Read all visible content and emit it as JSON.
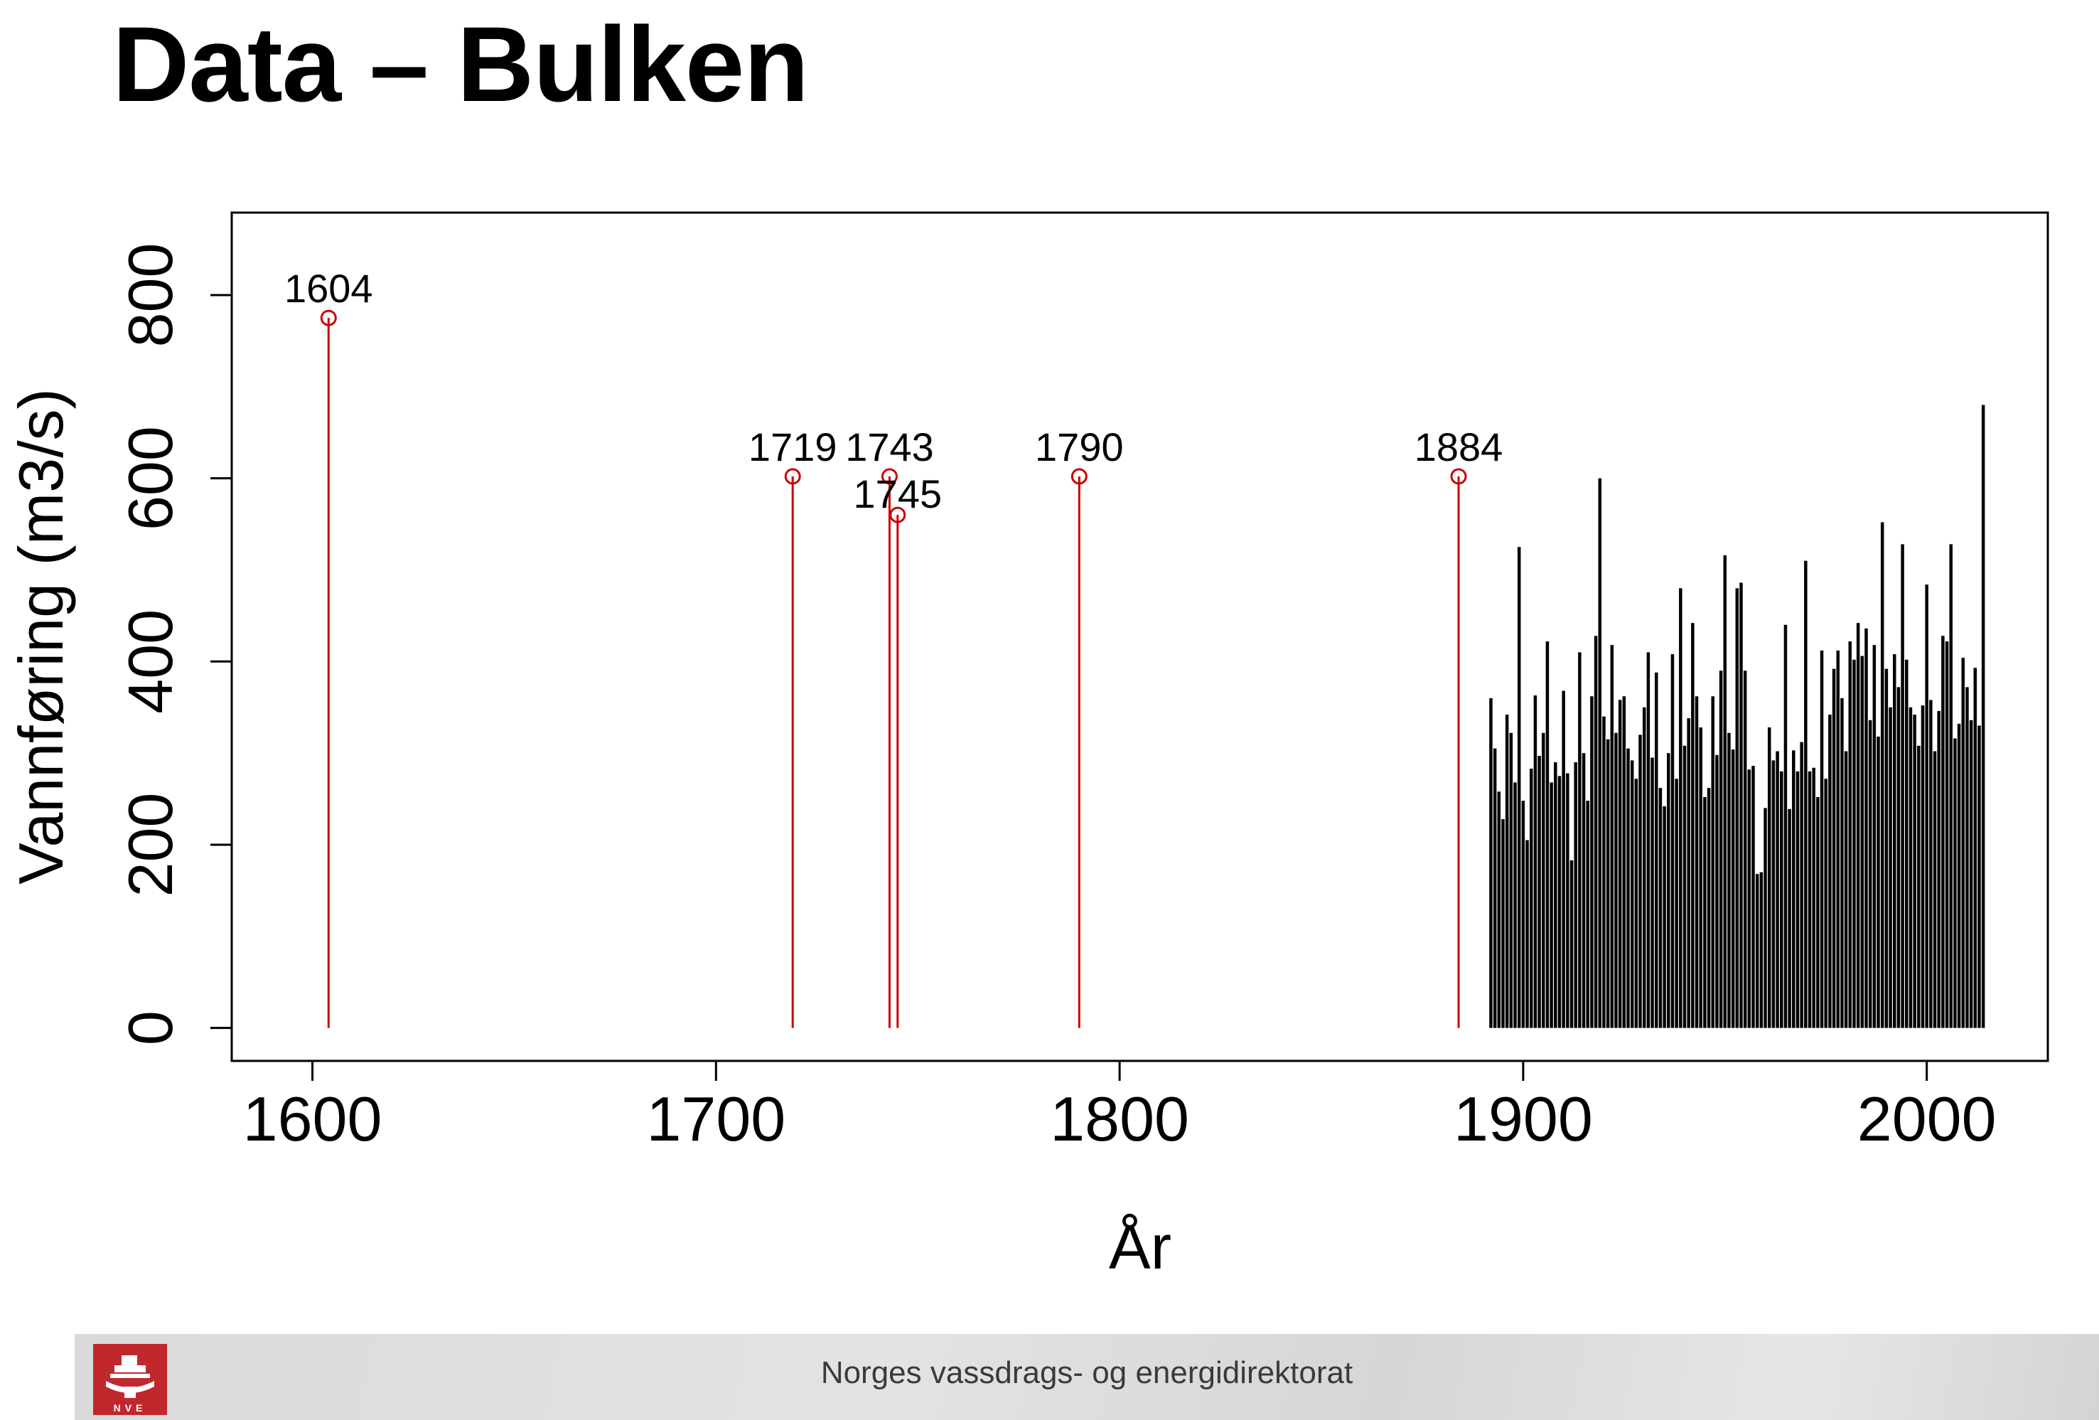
{
  "slide": {
    "title": "Data – Bulken",
    "footer_text": "Norges vassdrags- og energidirektorat",
    "logo_text": "NVE"
  },
  "colors": {
    "historical": "#cc0000",
    "observed": "#000000",
    "footer_bg": "#dcdcdc",
    "logo_red": "#c0282d"
  },
  "chart_data": {
    "type": "bar",
    "xlabel": "År",
    "ylabel": "Vannføring (m3/s)",
    "xlim": [
      1580,
      2030
    ],
    "ylim": [
      -36,
      890
    ],
    "x_ticks": [
      1600,
      1700,
      1800,
      1900,
      2000
    ],
    "y_ticks": [
      0,
      200,
      400,
      600,
      800
    ],
    "grid": false,
    "legend": "none",
    "series": [
      {
        "style": "historical",
        "x": [
          1604,
          1719,
          1743,
          1745,
          1790,
          1884
        ],
        "values": [
          775,
          602,
          602,
          560,
          602,
          602
        ],
        "labels": [
          "1604",
          "1719",
          "1743",
          "1745",
          "1790",
          "1884"
        ]
      },
      {
        "style": "observed",
        "x": [
          1892,
          1893,
          1894,
          1895,
          1896,
          1897,
          1898,
          1899,
          1900,
          1901,
          1902,
          1903,
          1904,
          1905,
          1906,
          1907,
          1908,
          1909,
          1910,
          1911,
          1912,
          1913,
          1914,
          1915,
          1916,
          1917,
          1918,
          1919,
          1920,
          1921,
          1922,
          1923,
          1924,
          1925,
          1926,
          1927,
          1928,
          1929,
          1930,
          1931,
          1932,
          1933,
          1934,
          1935,
          1936,
          1937,
          1938,
          1939,
          1940,
          1941,
          1942,
          1943,
          1944,
          1945,
          1946,
          1947,
          1948,
          1949,
          1950,
          1951,
          1952,
          1953,
          1954,
          1955,
          1956,
          1957,
          1958,
          1959,
          1960,
          1961,
          1962,
          1963,
          1964,
          1965,
          1966,
          1967,
          1968,
          1969,
          1970,
          1971,
          1972,
          1973,
          1974,
          1975,
          1976,
          1977,
          1978,
          1979,
          1980,
          1981,
          1982,
          1983,
          1984,
          1985,
          1986,
          1987,
          1988,
          1989,
          1990,
          1991,
          1992,
          1993,
          1994,
          1995,
          1996,
          1997,
          1998,
          1999,
          2000,
          2001,
          2002,
          2003,
          2004,
          2005,
          2006,
          2007,
          2008,
          2009,
          2010,
          2011,
          2012,
          2013,
          2014
        ],
        "values": [
          360,
          305,
          258,
          228,
          342,
          322,
          268,
          525,
          248,
          205,
          283,
          363,
          297,
          322,
          422,
          268,
          290,
          275,
          368,
          278,
          183,
          290,
          410,
          300,
          248,
          362,
          428,
          600,
          340,
          315,
          418,
          322,
          358,
          362,
          305,
          292,
          272,
          320,
          350,
          410,
          295,
          388,
          262,
          242,
          300,
          408,
          272,
          480,
          308,
          338,
          442,
          362,
          328,
          252,
          262,
          362,
          298,
          390,
          516,
          322,
          304,
          480,
          486,
          390,
          282,
          286,
          168,
          170,
          240,
          328,
          292,
          302,
          280,
          440,
          239,
          303,
          280,
          312,
          510,
          280,
          284,
          252,
          412,
          272,
          342,
          392,
          412,
          360,
          302,
          422,
          402,
          442,
          406,
          436,
          336,
          418,
          318,
          552,
          392,
          350,
          408,
          372,
          528,
          402,
          350,
          342,
          308,
          352,
          484,
          358,
          302,
          346,
          428,
          422,
          528,
          316,
          332,
          404,
          372,
          336,
          393,
          330,
          680
        ]
      }
    ]
  }
}
